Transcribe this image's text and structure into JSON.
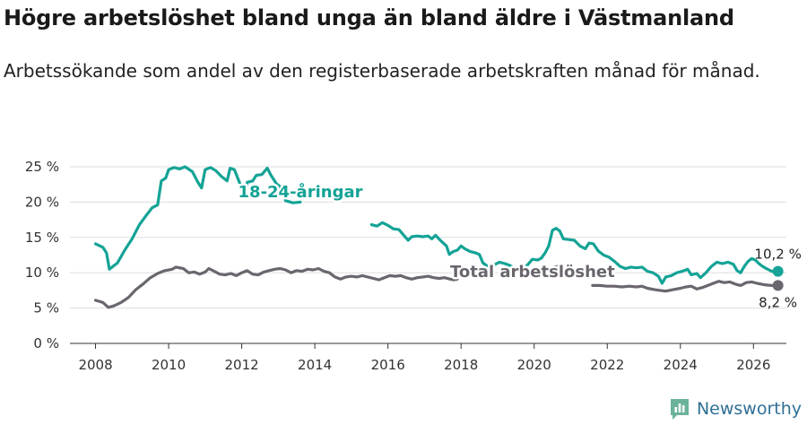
{
  "title": "Högre arbetslöshet bland unga än bland äldre i Västmanland",
  "subtitle": "Arbetssökande som andel av den registerbaserade arbetskraften månad för månad.",
  "brand": {
    "name": "Newsworthy"
  },
  "colors": {
    "youth": "#14a396",
    "total": "#6b666e",
    "grid": "#dedede",
    "axis": "#333333",
    "brand": "#2f6f95"
  },
  "chart_data": {
    "type": "line",
    "title": "Högre arbetslöshet bland unga än bland äldre i Västmanland",
    "xlabel": "",
    "ylabel": "",
    "xlim": [
      2007.3,
      2026.9
    ],
    "ylim": [
      0,
      25
    ],
    "y_ticks": [
      0,
      5,
      10,
      15,
      20,
      25
    ],
    "y_tick_labels": [
      "0 %",
      "5 %",
      "10 %",
      "15 %",
      "20 %",
      "25 %"
    ],
    "x_ticks": [
      2008,
      2010,
      2012,
      2014,
      2016,
      2018,
      2020,
      2022,
      2024,
      2026
    ],
    "x_tick_labels": [
      "2008",
      "2010",
      "2012",
      "2014",
      "2016",
      "2018",
      "2020",
      "2022",
      "2024",
      "2026"
    ],
    "grid": true,
    "series": [
      {
        "name": "18-24-åringar",
        "label": "18-24-åringar",
        "color": "#14a396",
        "end_label": "10,2 %",
        "points": [
          [
            2008.0,
            14.1
          ],
          [
            2008.2,
            13.6
          ],
          [
            2008.3,
            12.8
          ],
          [
            2008.38,
            10.5
          ],
          [
            2008.6,
            11.4
          ],
          [
            2008.8,
            13.2
          ],
          [
            2009.0,
            14.8
          ],
          [
            2009.2,
            16.8
          ],
          [
            2009.4,
            18.2
          ],
          [
            2009.55,
            19.2
          ],
          [
            2009.7,
            19.6
          ],
          [
            2009.8,
            23.0
          ],
          [
            2009.92,
            23.4
          ],
          [
            2010.0,
            24.6
          ],
          [
            2010.15,
            24.9
          ],
          [
            2010.3,
            24.7
          ],
          [
            2010.45,
            25.0
          ],
          [
            2010.65,
            24.3
          ],
          [
            2010.8,
            22.8
          ],
          [
            2010.9,
            22.0
          ],
          [
            2011.0,
            24.6
          ],
          [
            2011.15,
            24.9
          ],
          [
            2011.3,
            24.4
          ],
          [
            2011.45,
            23.6
          ],
          [
            2011.6,
            23.0
          ],
          [
            2011.68,
            24.8
          ],
          [
            2011.8,
            24.6
          ],
          [
            2011.95,
            22.6
          ],
          [
            2012.05,
            20.6
          ],
          [
            2012.15,
            22.8
          ],
          [
            2012.3,
            23.0
          ],
          [
            2012.4,
            23.8
          ],
          [
            2012.55,
            23.9
          ],
          [
            2012.7,
            24.8
          ],
          [
            2012.8,
            23.8
          ],
          [
            2012.95,
            22.6
          ],
          [
            2013.05,
            22.2
          ],
          [
            2013.2,
            20.2
          ],
          [
            2013.4,
            19.9
          ],
          [
            2013.6,
            20.0
          ]
        ]
      },
      {
        "name": "18-24-åringar",
        "color": "#14a396",
        "points": [
          [
            2015.55,
            16.8
          ],
          [
            2015.7,
            16.6
          ],
          [
            2015.85,
            17.1
          ],
          [
            2016.0,
            16.7
          ],
          [
            2016.15,
            16.2
          ],
          [
            2016.3,
            16.1
          ],
          [
            2016.45,
            15.2
          ],
          [
            2016.55,
            14.6
          ],
          [
            2016.65,
            15.1
          ],
          [
            2016.8,
            15.2
          ],
          [
            2016.95,
            15.1
          ],
          [
            2017.1,
            15.2
          ],
          [
            2017.2,
            14.8
          ],
          [
            2017.3,
            15.3
          ],
          [
            2017.45,
            14.5
          ],
          [
            2017.6,
            13.8
          ],
          [
            2017.68,
            12.6
          ],
          [
            2017.78,
            13.0
          ],
          [
            2017.9,
            13.2
          ],
          [
            2018.0,
            13.8
          ],
          [
            2018.1,
            13.4
          ],
          [
            2018.25,
            13.0
          ],
          [
            2018.4,
            12.8
          ],
          [
            2018.5,
            12.6
          ],
          [
            2018.6,
            11.4
          ],
          [
            2018.75,
            10.8
          ],
          [
            2018.9,
            11.1
          ],
          [
            2019.05,
            11.5
          ],
          [
            2019.2,
            11.3
          ],
          [
            2019.35,
            11.0
          ],
          [
            2019.5,
            10.5
          ],
          [
            2019.65,
            10.6
          ],
          [
            2019.8,
            11.0
          ],
          [
            2019.95,
            11.9
          ],
          [
            2020.1,
            11.8
          ],
          [
            2020.2,
            12.1
          ],
          [
            2020.3,
            12.8
          ],
          [
            2020.4,
            13.8
          ],
          [
            2020.5,
            16.0
          ],
          [
            2020.6,
            16.3
          ],
          [
            2020.7,
            15.9
          ],
          [
            2020.8,
            14.8
          ],
          [
            2020.95,
            14.7
          ],
          [
            2021.1,
            14.6
          ],
          [
            2021.25,
            13.8
          ],
          [
            2021.4,
            13.4
          ],
          [
            2021.5,
            14.2
          ],
          [
            2021.62,
            14.1
          ],
          [
            2021.75,
            13.1
          ],
          [
            2021.9,
            12.5
          ],
          [
            2022.05,
            12.2
          ],
          [
            2022.2,
            11.6
          ],
          [
            2022.35,
            10.9
          ],
          [
            2022.5,
            10.6
          ],
          [
            2022.65,
            10.8
          ],
          [
            2022.8,
            10.7
          ],
          [
            2022.95,
            10.8
          ],
          [
            2023.1,
            10.2
          ],
          [
            2023.25,
            10.0
          ],
          [
            2023.4,
            9.5
          ],
          [
            2023.5,
            8.5
          ],
          [
            2023.6,
            9.4
          ],
          [
            2023.75,
            9.6
          ],
          [
            2023.9,
            10.0
          ],
          [
            2024.05,
            10.2
          ],
          [
            2024.2,
            10.5
          ],
          [
            2024.3,
            9.7
          ],
          [
            2024.45,
            9.9
          ],
          [
            2024.55,
            9.3
          ],
          [
            2024.7,
            10.0
          ],
          [
            2024.85,
            10.9
          ],
          [
            2025.0,
            11.5
          ],
          [
            2025.15,
            11.3
          ],
          [
            2025.3,
            11.5
          ],
          [
            2025.45,
            11.2
          ],
          [
            2025.55,
            10.3
          ],
          [
            2025.65,
            10.0
          ],
          [
            2025.75,
            10.9
          ],
          [
            2025.85,
            11.6
          ],
          [
            2025.95,
            12.0
          ],
          [
            2026.05,
            11.8
          ],
          [
            2026.15,
            11.3
          ],
          [
            2026.25,
            10.9
          ],
          [
            2026.35,
            10.6
          ],
          [
            2026.5,
            10.2
          ],
          [
            2026.67,
            10.2
          ]
        ]
      },
      {
        "name": "Total arbetslöshet",
        "label": "Total arbetslöshet",
        "color": "#6b666e",
        "end_label": "8,2 %",
        "points": [
          [
            2008.0,
            6.1
          ],
          [
            2008.2,
            5.8
          ],
          [
            2008.35,
            5.1
          ],
          [
            2008.5,
            5.3
          ],
          [
            2008.7,
            5.8
          ],
          [
            2008.9,
            6.5
          ],
          [
            2009.1,
            7.6
          ],
          [
            2009.3,
            8.4
          ],
          [
            2009.5,
            9.3
          ],
          [
            2009.7,
            9.9
          ],
          [
            2009.9,
            10.3
          ],
          [
            2010.1,
            10.5
          ],
          [
            2010.2,
            10.8
          ],
          [
            2010.4,
            10.6
          ],
          [
            2010.55,
            10.0
          ],
          [
            2010.7,
            10.1
          ],
          [
            2010.85,
            9.8
          ],
          [
            2011.0,
            10.1
          ],
          [
            2011.1,
            10.6
          ],
          [
            2011.25,
            10.2
          ],
          [
            2011.4,
            9.8
          ],
          [
            2011.55,
            9.7
          ],
          [
            2011.7,
            9.9
          ],
          [
            2011.85,
            9.6
          ],
          [
            2012.0,
            10.0
          ],
          [
            2012.15,
            10.3
          ],
          [
            2012.3,
            9.8
          ],
          [
            2012.45,
            9.7
          ],
          [
            2012.6,
            10.1
          ],
          [
            2012.75,
            10.3
          ],
          [
            2012.9,
            10.5
          ],
          [
            2013.05,
            10.6
          ],
          [
            2013.2,
            10.4
          ],
          [
            2013.35,
            10.0
          ],
          [
            2013.5,
            10.3
          ],
          [
            2013.65,
            10.2
          ],
          [
            2013.8,
            10.5
          ],
          [
            2013.95,
            10.4
          ],
          [
            2014.1,
            10.6
          ],
          [
            2014.25,
            10.2
          ],
          [
            2014.4,
            10.0
          ],
          [
            2014.55,
            9.4
          ],
          [
            2014.7,
            9.1
          ],
          [
            2014.85,
            9.4
          ],
          [
            2015.0,
            9.5
          ],
          [
            2015.15,
            9.4
          ],
          [
            2015.3,
            9.6
          ],
          [
            2015.45,
            9.4
          ],
          [
            2015.6,
            9.2
          ],
          [
            2015.75,
            9.0
          ],
          [
            2015.9,
            9.3
          ],
          [
            2016.05,
            9.6
          ],
          [
            2016.2,
            9.5
          ],
          [
            2016.35,
            9.6
          ],
          [
            2016.5,
            9.3
          ],
          [
            2016.65,
            9.1
          ],
          [
            2016.8,
            9.3
          ],
          [
            2016.95,
            9.4
          ],
          [
            2017.1,
            9.5
          ],
          [
            2017.25,
            9.3
          ],
          [
            2017.4,
            9.2
          ],
          [
            2017.55,
            9.3
          ],
          [
            2017.7,
            9.1
          ],
          [
            2017.8,
            9.0
          ],
          [
            2017.9,
            9.1
          ]
        ]
      },
      {
        "name": "Total arbetslöshet",
        "color": "#6b666e",
        "points": [
          [
            2020.45,
            10.5
          ],
          [
            2020.55,
            10.8
          ],
          [
            2020.65,
            10.9
          ],
          [
            2020.72,
            10.7
          ]
        ]
      },
      {
        "name": "Total arbetslöshet",
        "color": "#6b666e",
        "points": [
          [
            2021.6,
            8.2
          ],
          [
            2021.8,
            8.2
          ],
          [
            2022.0,
            8.1
          ],
          [
            2022.2,
            8.1
          ],
          [
            2022.4,
            8.0
          ],
          [
            2022.6,
            8.1
          ],
          [
            2022.8,
            8.0
          ],
          [
            2022.95,
            8.1
          ],
          [
            2023.1,
            7.8
          ],
          [
            2023.3,
            7.6
          ],
          [
            2023.45,
            7.5
          ],
          [
            2023.6,
            7.4
          ],
          [
            2023.8,
            7.6
          ],
          [
            2024.0,
            7.8
          ],
          [
            2024.15,
            8.0
          ],
          [
            2024.3,
            8.1
          ],
          [
            2024.45,
            7.7
          ],
          [
            2024.6,
            7.9
          ],
          [
            2024.75,
            8.2
          ],
          [
            2024.9,
            8.5
          ],
          [
            2025.05,
            8.8
          ],
          [
            2025.2,
            8.6
          ],
          [
            2025.35,
            8.7
          ],
          [
            2025.5,
            8.4
          ],
          [
            2025.65,
            8.2
          ],
          [
            2025.8,
            8.6
          ],
          [
            2025.95,
            8.7
          ],
          [
            2026.1,
            8.5
          ],
          [
            2026.3,
            8.3
          ],
          [
            2026.5,
            8.2
          ],
          [
            2026.67,
            8.2
          ]
        ]
      }
    ],
    "end_points": [
      {
        "series": "18-24-åringar",
        "x": 2026.67,
        "y": 10.2,
        "label": "10,2 %",
        "color": "#14a396"
      },
      {
        "series": "Total arbetslöshet",
        "x": 2026.67,
        "y": 8.2,
        "label": "8,2 %",
        "color": "#6b666e"
      }
    ],
    "annotations": [
      {
        "text": "18-24-åringar",
        "series": "18-24-åringar",
        "x": 2011.9,
        "y": 20.7,
        "color": "#14a396"
      },
      {
        "text": "Total arbetslöshet",
        "series": "Total arbetslöshet",
        "x": 2017.7,
        "y": 9.4,
        "color": "#6b666e"
      }
    ]
  }
}
